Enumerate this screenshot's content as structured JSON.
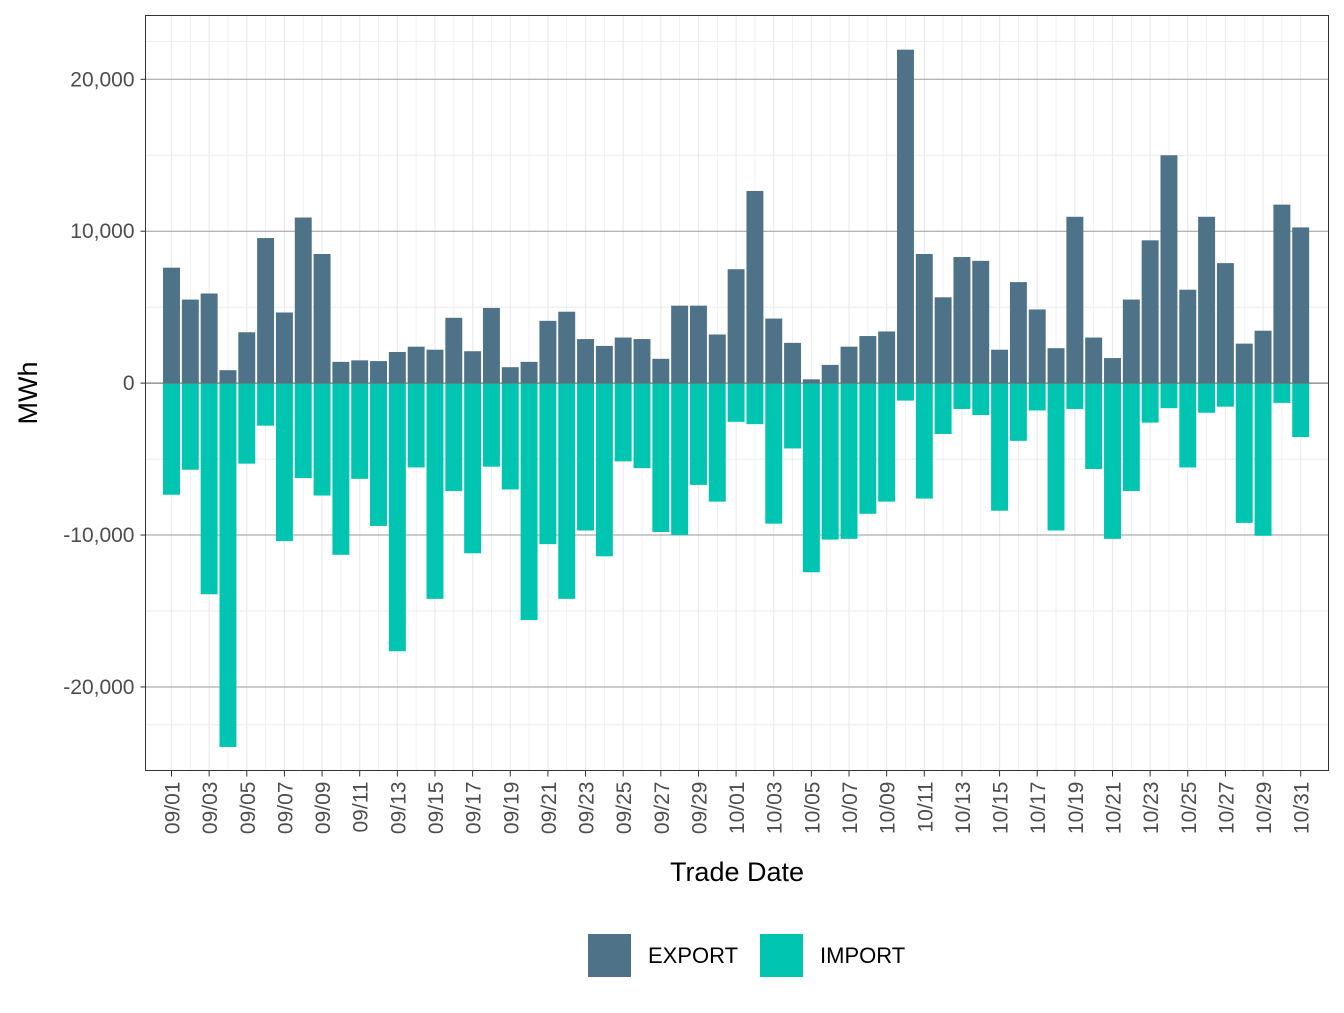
{
  "chart_data": {
    "type": "bar",
    "xlabel": "Trade Date",
    "ylabel": "MWh",
    "ylim": [
      -25500,
      24200
    ],
    "yticks": [
      -20000,
      -10000,
      0,
      10000,
      20000
    ],
    "ytick_labels": [
      "-20,000",
      "-10,000",
      "0",
      "10,000",
      "20,000"
    ],
    "grid": true,
    "legend_position": "bottom",
    "categories": [
      "09/01",
      "09/02",
      "09/03",
      "09/04",
      "09/05",
      "09/06",
      "09/07",
      "09/08",
      "09/09",
      "09/10",
      "09/11",
      "09/12",
      "09/13",
      "09/14",
      "09/15",
      "09/16",
      "09/17",
      "09/18",
      "09/19",
      "09/20",
      "09/21",
      "09/22",
      "09/23",
      "09/24",
      "09/25",
      "09/26",
      "09/27",
      "09/28",
      "09/29",
      "09/30",
      "10/01",
      "10/02",
      "10/03",
      "10/04",
      "10/05",
      "10/06",
      "10/07",
      "10/08",
      "10/09",
      "10/10",
      "10/11",
      "10/12",
      "10/13",
      "10/14",
      "10/15",
      "10/16",
      "10/17",
      "10/18",
      "10/19",
      "10/20",
      "10/21",
      "10/22",
      "10/23",
      "10/24",
      "10/25",
      "10/26",
      "10/27",
      "10/28",
      "10/29",
      "10/30",
      "10/31"
    ],
    "xtick_labels": [
      "09/01",
      "09/03",
      "09/05",
      "09/07",
      "09/09",
      "09/11",
      "09/13",
      "09/15",
      "09/17",
      "09/19",
      "09/21",
      "09/23",
      "09/25",
      "09/27",
      "09/29",
      "10/01",
      "10/03",
      "10/05",
      "10/07",
      "10/09",
      "10/11",
      "10/13",
      "10/15",
      "10/17",
      "10/19",
      "10/21",
      "10/23",
      "10/25",
      "10/27",
      "10/29",
      "10/31"
    ],
    "series": [
      {
        "name": "EXPORT",
        "color": "#4e7388",
        "values": [
          7600,
          5500,
          5900,
          850,
          3350,
          9550,
          4650,
          10900,
          8500,
          1400,
          1500,
          1450,
          2050,
          2400,
          2200,
          4300,
          2100,
          4950,
          1050,
          1400,
          4100,
          4700,
          2900,
          2450,
          3000,
          2900,
          1600,
          5100,
          5100,
          3200,
          7500,
          12650,
          4250,
          2650,
          250,
          1200,
          2400,
          3100,
          3400,
          21950,
          8500,
          5650,
          8300,
          8050,
          2200,
          6650,
          4850,
          2300,
          10950,
          3000,
          1650,
          5500,
          9400,
          15000,
          6150,
          10950,
          7900,
          2600,
          3450,
          11750,
          10250
        ]
      },
      {
        "name": "IMPORT",
        "color": "#00c5b0",
        "values": [
          -7350,
          -5700,
          -13900,
          -23950,
          -5300,
          -2800,
          -10400,
          -6250,
          -7400,
          -11300,
          -6300,
          -9400,
          -17650,
          -5550,
          -14200,
          -7100,
          -11200,
          -5500,
          -7000,
          -15600,
          -10600,
          -14200,
          -9700,
          -11400,
          -5150,
          -5600,
          -9800,
          -10000,
          -6700,
          -7800,
          -2550,
          -2700,
          -9250,
          -4300,
          -12450,
          -10300,
          -10250,
          -8600,
          -7800,
          -1150,
          -7600,
          -3350,
          -1700,
          -2100,
          -8400,
          -3800,
          -1800,
          -9700,
          -1700,
          -5650,
          -10250,
          -7100,
          -2600,
          -1650,
          -5550,
          -1950,
          -1550,
          -9200,
          -10050,
          -1300,
          -3550
        ]
      }
    ]
  }
}
